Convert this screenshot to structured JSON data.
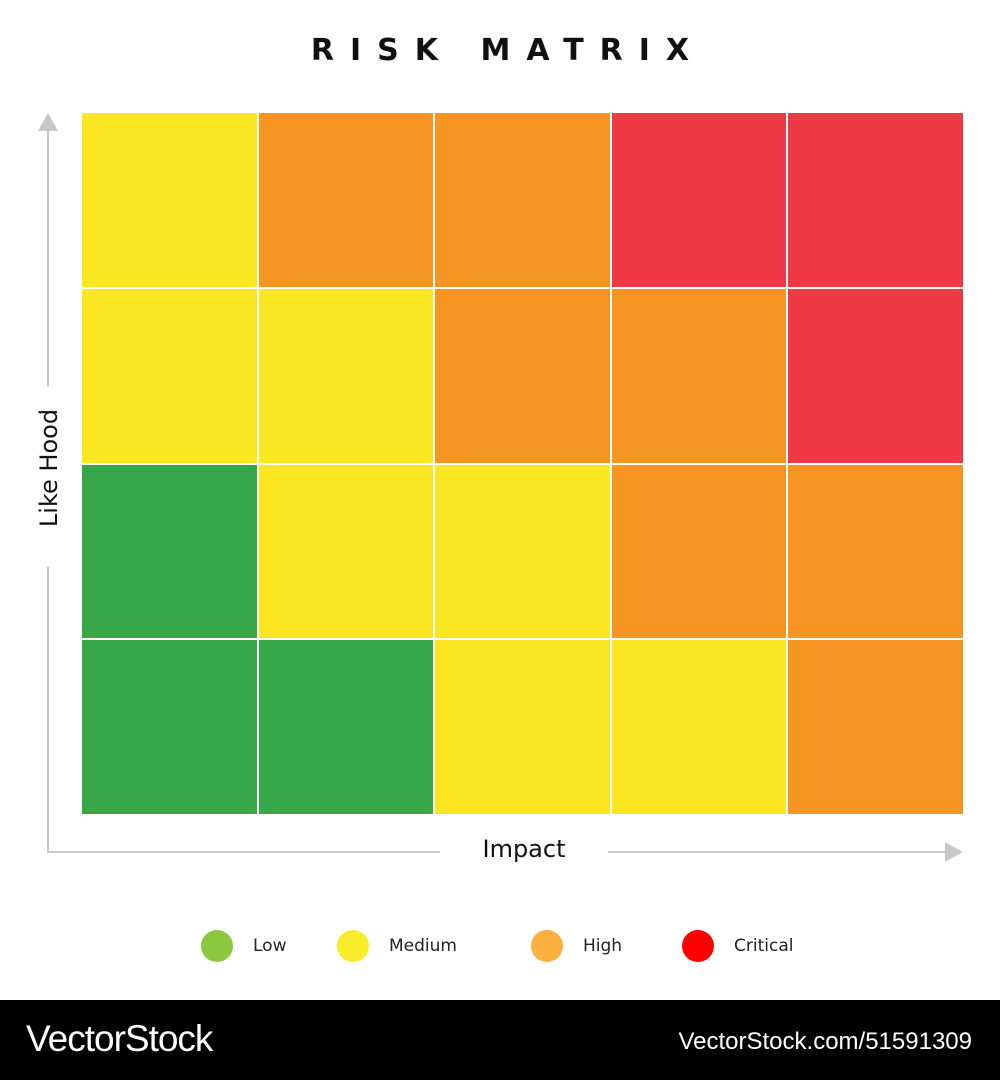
{
  "title": "RISK MATRIX",
  "axes": {
    "y_label": "Like Hood",
    "x_label": "Impact"
  },
  "colors": {
    "low": "#36a84a",
    "medium": "#fae721",
    "high": "#f79522",
    "critical": "#ef3944",
    "legend_low": "#8dc63f",
    "legend_medium": "#f9ec2a",
    "legend_high": "#fbb040",
    "legend_critical": "#ff0000"
  },
  "matrix": [
    [
      "medium",
      "high",
      "high",
      "critical",
      "critical"
    ],
    [
      "medium",
      "medium",
      "high",
      "high",
      "critical"
    ],
    [
      "low",
      "medium",
      "medium",
      "high",
      "high"
    ],
    [
      "low",
      "low",
      "medium",
      "medium",
      "high"
    ]
  ],
  "legend": [
    {
      "key": "low",
      "label": "Low"
    },
    {
      "key": "medium",
      "label": "Medium"
    },
    {
      "key": "high",
      "label": "High"
    },
    {
      "key": "critical",
      "label": "Critical"
    }
  ],
  "footer": {
    "brand": "VectorStock",
    "id_text": "VectorStock.com/51591309"
  }
}
